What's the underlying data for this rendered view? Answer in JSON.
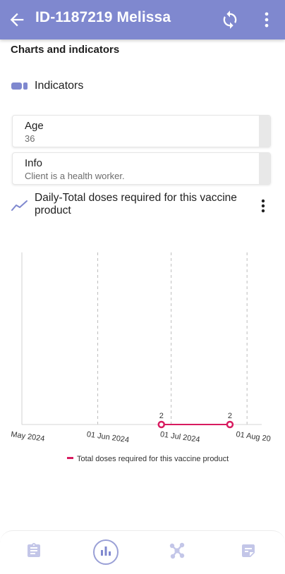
{
  "app_bar": {
    "title": "ID-1187219 Melissa",
    "back_icon": "arrow-back-icon",
    "sync_icon": "sync-icon",
    "more_icon": "more-vert-icon",
    "color": "#7f88cf"
  },
  "section": {
    "title": "Charts and indicators"
  },
  "indicators": {
    "label": "Indicators",
    "icon": "indicators-icon"
  },
  "cards": [
    {
      "label": "Age",
      "value": "36"
    },
    {
      "label": "Info",
      "value": "Client is a health worker."
    }
  ],
  "chart": {
    "title": "Daily-Total doses required for this vaccine product",
    "trend_icon": "trend-line-icon",
    "more_icon": "more-vert-icon"
  },
  "chart_data": {
    "type": "line",
    "title": "Daily-Total doses required for this vaccine product",
    "x_ticks": [
      "May 2024",
      "01 Jun 2024",
      "01 Jul 2024",
      "01 Aug 20"
    ],
    "series": [
      {
        "name": "Total doses required for this vaccine product",
        "color": "#d81b60",
        "points": [
          {
            "x": "2024-06-27",
            "y": 2,
            "label": "2"
          },
          {
            "x": "2024-07-25",
            "y": 2,
            "label": "2"
          }
        ]
      }
    ],
    "x_range": [
      "2024-05-01",
      "2024-08-07"
    ],
    "grid": "vertical dashed",
    "legend": "bottom"
  },
  "bottom_nav": {
    "items": [
      {
        "icon": "clipboard-icon",
        "active": false
      },
      {
        "icon": "bar-chart-icon",
        "active": true
      },
      {
        "icon": "graph-network-icon",
        "active": false
      },
      {
        "icon": "note-icon",
        "active": false
      }
    ],
    "active_color": "#7f88cf",
    "inactive_color": "#c3c6e8"
  }
}
